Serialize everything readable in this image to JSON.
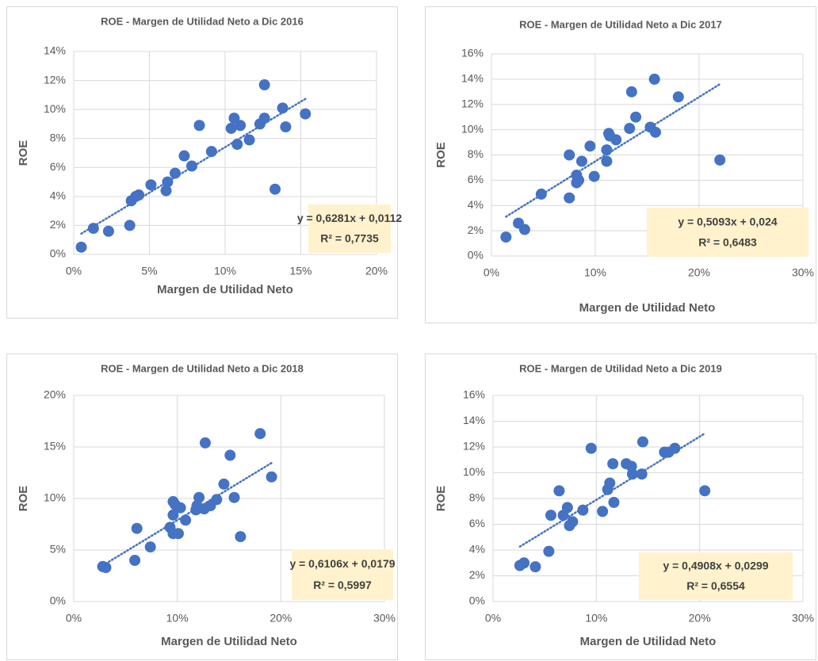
{
  "chart_data": [
    {
      "type": "scatter",
      "title": "ROE - Margen de Utilidad Neto a Dic 2016",
      "x_label": "Margen de Utilidad Neto",
      "y_label": "ROE",
      "color": "#4472c4",
      "grid": true,
      "xlim": [
        0,
        0.2
      ],
      "ylim": [
        0,
        0.14
      ],
      "xticks": [
        {
          "value": 0,
          "label": "0%"
        },
        {
          "value": 0.05,
          "label": "5%"
        },
        {
          "value": 0.1,
          "label": "10%"
        },
        {
          "value": 0.15,
          "label": "15%"
        },
        {
          "value": 0.2,
          "label": "20%"
        }
      ],
      "yticks": [
        {
          "value": 0,
          "label": "0%"
        },
        {
          "value": 0.02,
          "label": "2%"
        },
        {
          "value": 0.04,
          "label": "4%"
        },
        {
          "value": 0.06,
          "label": "6%"
        },
        {
          "value": 0.08,
          "label": "8%"
        },
        {
          "value": 0.1,
          "label": "10%"
        },
        {
          "value": 0.12,
          "label": "12%"
        },
        {
          "value": 0.14,
          "label": "14%"
        }
      ],
      "x": [
        0.005,
        0.013,
        0.023,
        0.037,
        0.038,
        0.041,
        0.043,
        0.051,
        0.061,
        0.062,
        0.067,
        0.073,
        0.078,
        0.083,
        0.091,
        0.104,
        0.106,
        0.108,
        0.11,
        0.116,
        0.123,
        0.126,
        0.126,
        0.133,
        0.138,
        0.14,
        0.153
      ],
      "values": [
        0.005,
        0.018,
        0.016,
        0.02,
        0.037,
        0.04,
        0.041,
        0.048,
        0.044,
        0.05,
        0.056,
        0.068,
        0.061,
        0.089,
        0.071,
        0.087,
        0.094,
        0.076,
        0.089,
        0.079,
        0.09,
        0.117,
        0.094,
        0.045,
        0.101,
        0.088,
        0.097
      ],
      "trendline": {
        "slope": 0.6281,
        "intercept": 0.0112,
        "r2": 0.7735,
        "equation_label": "y = 0,6281x + 0,0112",
        "r2_label": "R² = 0,7735"
      }
    },
    {
      "type": "scatter",
      "title": "ROE - Margen de Utilidad Neto a Dic 2017",
      "x_label": "Margen de Utilidad Neto",
      "y_label": "ROE",
      "color": "#4472c4",
      "grid": true,
      "xlim": [
        0,
        0.3
      ],
      "ylim": [
        0,
        0.16
      ],
      "xticks": [
        {
          "value": 0,
          "label": "0%"
        },
        {
          "value": 0.1,
          "label": "10%"
        },
        {
          "value": 0.2,
          "label": "20%"
        },
        {
          "value": 0.3,
          "label": "30%"
        }
      ],
      "yticks": [
        {
          "value": 0,
          "label": "0%"
        },
        {
          "value": 0.02,
          "label": "2%"
        },
        {
          "value": 0.04,
          "label": "4%"
        },
        {
          "value": 0.06,
          "label": "6%"
        },
        {
          "value": 0.08,
          "label": "8%"
        },
        {
          "value": 0.1,
          "label": "10%"
        },
        {
          "value": 0.12,
          "label": "12%"
        },
        {
          "value": 0.14,
          "label": "14%"
        },
        {
          "value": 0.16,
          "label": "16%"
        }
      ],
      "x": [
        0.014,
        0.026,
        0.032,
        0.048,
        0.075,
        0.075,
        0.082,
        0.082,
        0.084,
        0.087,
        0.095,
        0.099,
        0.111,
        0.111,
        0.113,
        0.114,
        0.12,
        0.133,
        0.135,
        0.139,
        0.153,
        0.157,
        0.158,
        0.18,
        0.22
      ],
      "values": [
        0.015,
        0.026,
        0.021,
        0.049,
        0.046,
        0.08,
        0.064,
        0.058,
        0.06,
        0.075,
        0.087,
        0.063,
        0.075,
        0.084,
        0.097,
        0.095,
        0.092,
        0.101,
        0.13,
        0.11,
        0.102,
        0.14,
        0.098,
        0.126,
        0.076
      ],
      "trendline": {
        "slope": 0.5093,
        "intercept": 0.024,
        "r2": 0.6483,
        "equation_label": "y = 0,5093x + 0,024",
        "r2_label": "R² = 0,6483"
      }
    },
    {
      "type": "scatter",
      "title": "ROE - Margen de Utilidad Neto a Dic 2018",
      "x_label": "Margen de Utilidad Neto",
      "y_label": "ROE",
      "color": "#4472c4",
      "grid": true,
      "xlim": [
        0,
        0.3
      ],
      "ylim": [
        0,
        0.2
      ],
      "xticks": [
        {
          "value": 0,
          "label": "0%"
        },
        {
          "value": 0.1,
          "label": "10%"
        },
        {
          "value": 0.2,
          "label": "20%"
        },
        {
          "value": 0.3,
          "label": "30%"
        }
      ],
      "yticks": [
        {
          "value": 0,
          "label": "0%"
        },
        {
          "value": 0.05,
          "label": "5%"
        },
        {
          "value": 0.1,
          "label": "10%"
        },
        {
          "value": 0.15,
          "label": "15%"
        },
        {
          "value": 0.2,
          "label": "20%"
        }
      ],
      "x": [
        0.028,
        0.031,
        0.059,
        0.061,
        0.074,
        0.093,
        0.096,
        0.096,
        0.098,
        0.096,
        0.101,
        0.103,
        0.108,
        0.118,
        0.119,
        0.121,
        0.126,
        0.127,
        0.132,
        0.138,
        0.145,
        0.151,
        0.155,
        0.161,
        0.18,
        0.191
      ],
      "values": [
        0.034,
        0.033,
        0.04,
        0.071,
        0.053,
        0.072,
        0.084,
        0.097,
        0.094,
        0.066,
        0.066,
        0.091,
        0.079,
        0.089,
        0.093,
        0.101,
        0.09,
        0.154,
        0.093,
        0.099,
        0.114,
        0.142,
        0.101,
        0.063,
        0.163,
        0.121
      ],
      "trendline": {
        "slope": 0.6106,
        "intercept": 0.0179,
        "r2": 0.5997,
        "equation_label": "y = 0,6106x + 0,0179",
        "r2_label": "R² = 0,5997"
      }
    },
    {
      "type": "scatter",
      "title": "ROE - Margen de Utilidad Neto a Dic 2019",
      "x_label": "Margen de Utilidad Neto",
      "y_label": "ROE",
      "color": "#4472c4",
      "grid": true,
      "xlim": [
        0,
        0.3
      ],
      "ylim": [
        0,
        0.16
      ],
      "xticks": [
        {
          "value": 0,
          "label": "0%"
        },
        {
          "value": 0.1,
          "label": "10%"
        },
        {
          "value": 0.2,
          "label": "20%"
        },
        {
          "value": 0.3,
          "label": "30%"
        }
      ],
      "yticks": [
        {
          "value": 0,
          "label": "0%"
        },
        {
          "value": 0.02,
          "label": "2%"
        },
        {
          "value": 0.04,
          "label": "4%"
        },
        {
          "value": 0.06,
          "label": "6%"
        },
        {
          "value": 0.08,
          "label": "8%"
        },
        {
          "value": 0.1,
          "label": "10%"
        },
        {
          "value": 0.12,
          "label": "12%"
        },
        {
          "value": 0.14,
          "label": "14%"
        },
        {
          "value": 0.16,
          "label": "16%"
        }
      ],
      "x": [
        0.026,
        0.03,
        0.041,
        0.054,
        0.056,
        0.064,
        0.068,
        0.072,
        0.074,
        0.077,
        0.087,
        0.095,
        0.106,
        0.111,
        0.113,
        0.116,
        0.117,
        0.129,
        0.134,
        0.135,
        0.144,
        0.145,
        0.166,
        0.17,
        0.176,
        0.205
      ],
      "values": [
        0.028,
        0.03,
        0.027,
        0.039,
        0.067,
        0.086,
        0.067,
        0.073,
        0.059,
        0.062,
        0.071,
        0.119,
        0.07,
        0.087,
        0.092,
        0.107,
        0.077,
        0.107,
        0.105,
        0.099,
        0.099,
        0.124,
        0.116,
        0.116,
        0.119,
        0.086
      ],
      "trendline": {
        "slope": 0.4908,
        "intercept": 0.0299,
        "r2": 0.6554,
        "equation_label": "y = 0,4908x + 0,0299",
        "r2_label": "R² = 0,6554"
      }
    }
  ]
}
